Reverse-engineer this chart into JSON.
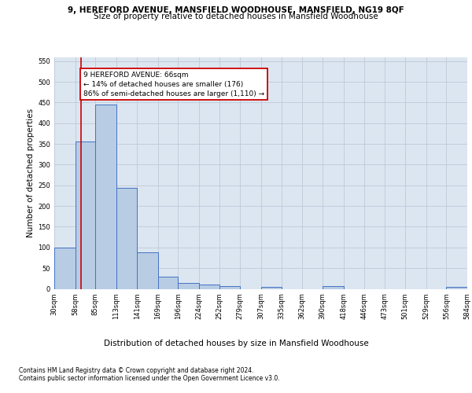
{
  "title1": "9, HEREFORD AVENUE, MANSFIELD WOODHOUSE, MANSFIELD, NG19 8QF",
  "title2": "Size of property relative to detached houses in Mansfield Woodhouse",
  "xlabel": "Distribution of detached houses by size in Mansfield Woodhouse",
  "ylabel": "Number of detached properties",
  "footnote1": "Contains HM Land Registry data © Crown copyright and database right 2024.",
  "footnote2": "Contains public sector information licensed under the Open Government Licence v3.0.",
  "annotation_title": "9 HEREFORD AVENUE: 66sqm",
  "annotation_line1": "← 14% of detached houses are smaller (176)",
  "annotation_line2": "86% of semi-detached houses are larger (1,110) →",
  "property_size": 66,
  "bin_edges": [
    30,
    58,
    85,
    113,
    141,
    169,
    196,
    224,
    252,
    279,
    307,
    335,
    362,
    390,
    418,
    446,
    473,
    501,
    529,
    556,
    584
  ],
  "bar_heights": [
    100,
    355,
    445,
    243,
    88,
    30,
    14,
    10,
    6,
    0,
    5,
    0,
    0,
    6,
    0,
    0,
    0,
    0,
    0,
    5
  ],
  "bar_color": "#b8cce4",
  "bar_edge_color": "#4472c4",
  "vline_color": "#cc0000",
  "vline_x": 66,
  "annotation_box_edgecolor": "#cc0000",
  "annotation_bg": "#ffffff",
  "grid_color": "#c0c8d8",
  "plot_bg_color": "#dce6f1",
  "ylim": [
    0,
    560
  ],
  "yticks": [
    0,
    50,
    100,
    150,
    200,
    250,
    300,
    350,
    400,
    450,
    500,
    550
  ],
  "title1_fontsize": 7.5,
  "title2_fontsize": 7.5,
  "xlabel_fontsize": 7.5,
  "ylabel_fontsize": 7.5,
  "tick_fontsize": 6.0,
  "annotation_fontsize": 6.5,
  "footnote_fontsize": 5.5
}
